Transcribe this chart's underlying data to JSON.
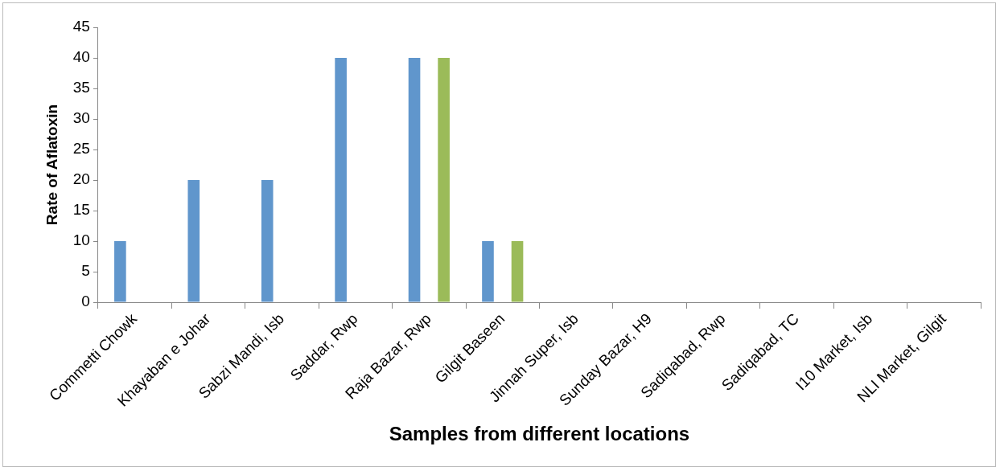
{
  "chart_data": {
    "type": "bar",
    "xlabel": "Samples from different locations",
    "ylabel": "Rate of Aflatoxin",
    "categories": [
      "Commetti Chowk",
      "Khayaban e Johar",
      "Sabzi Mandi, Isb",
      "Saddar, Rwp",
      "Raja Bazar, Rwp",
      "Gilgit Baseen",
      "Jinnah Super, Isb",
      "Sunday Bazar, H9",
      "Sadiqabad, Rwp",
      "Sadiqabad, TC",
      "I10 Market, Isb",
      "NLI Market, Gilgit"
    ],
    "series": [
      {
        "color": "#6096cc",
        "values": [
          10,
          20,
          20,
          40,
          40,
          10,
          0,
          0,
          0,
          0,
          0,
          0
        ]
      },
      {
        "color": "#c0504d",
        "values": [
          0,
          0,
          0,
          0,
          0,
          0,
          0,
          0,
          0,
          0,
          0,
          0
        ]
      },
      {
        "color": "#9bbb59",
        "values": [
          0,
          0,
          0,
          0,
          40,
          10,
          0,
          0,
          0,
          0,
          0,
          0
        ]
      }
    ],
    "ylim": [
      0,
      45
    ],
    "yticks": [
      0,
      5,
      10,
      15,
      20,
      25,
      30,
      35,
      40,
      45
    ],
    "grid": false,
    "legend": false
  }
}
